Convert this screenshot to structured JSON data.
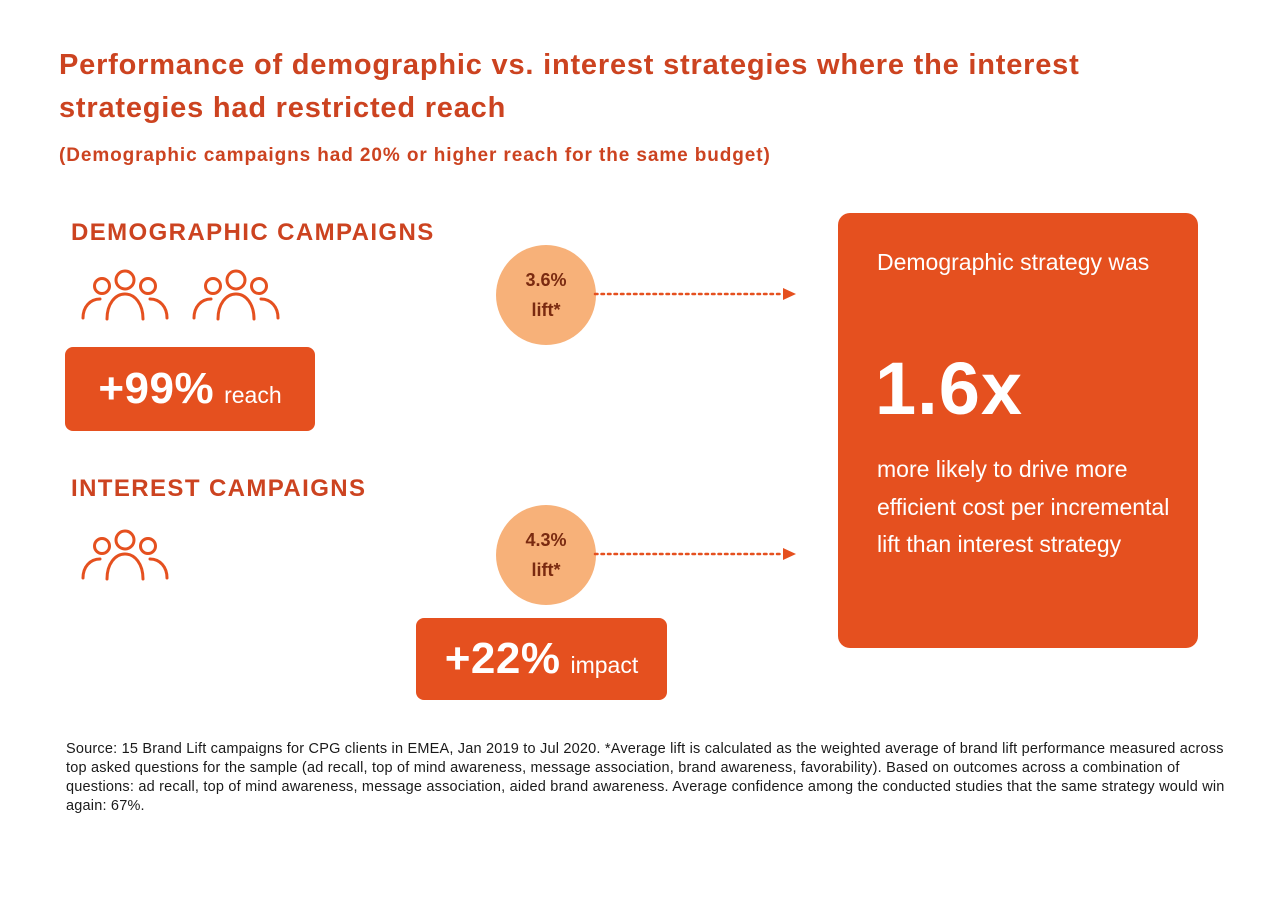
{
  "title": "Performance of demographic vs. interest strategies where the interest strategies had restricted reach",
  "subtitle": "(Demographic campaigns had 20% or higher reach for the same budget)",
  "demographic": {
    "heading": "DEMOGRAPHIC CAMPAIGNS",
    "stat_value": "+99%",
    "stat_label": "reach",
    "lift_value": "3.6%",
    "lift_label": "lift*"
  },
  "interest": {
    "heading": "INTEREST CAMPAIGNS",
    "stat_value": "+22%",
    "stat_label": "impact",
    "lift_value": "4.3%",
    "lift_label": "lift*"
  },
  "result": {
    "intro": "Demographic strategy was",
    "multiplier": "1.6x",
    "outro": "more likely to drive more efficient cost per incremental lift than interest strategy"
  },
  "source": "Source: 15 Brand Lift campaigns for CPG clients in EMEA, Jan 2019 to Jul 2020. *Average lift is calculated as the weighted average of brand lift performance measured across top asked questions for the sample (ad recall, top of mind awareness, message association, brand awareness, favorability).  Based on outcomes across a combination of questions: ad recall, top of mind awareness, message association, aided brand awareness. Average confidence among the conducted studies that the same strategy would win again: 67%.",
  "colors": {
    "accent": "#e5501f",
    "heading": "#cc4320",
    "lift_circle": "#f7b179"
  },
  "icons": [
    "people-group-icon",
    "arrow-right-icon"
  ]
}
